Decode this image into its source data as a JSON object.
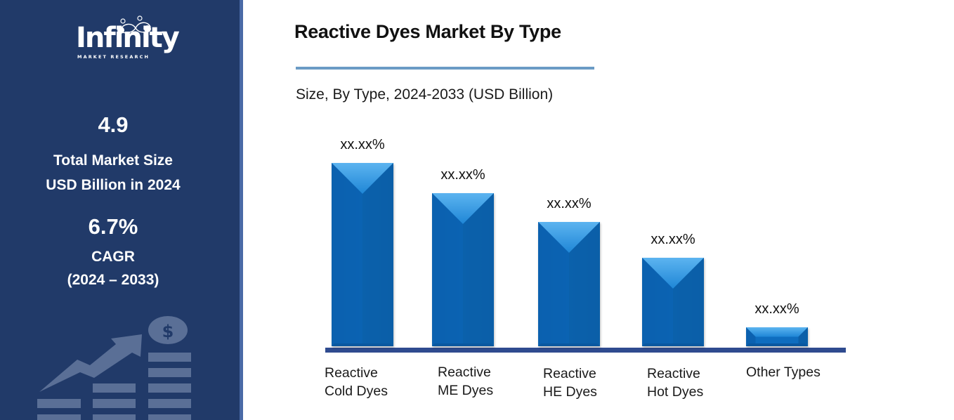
{
  "sidebar": {
    "logo": {
      "name": "Infinity",
      "subtitle": "MARKET RESEARCH"
    },
    "market_size": {
      "value": "4.9",
      "label_line1": "Total Market Size",
      "label_line2": "USD Billion in 2024"
    },
    "cagr": {
      "value": "6.7%",
      "label": "CAGR",
      "period": "(2024 – 2033)"
    },
    "decoration": "growth-chart-dollar-icon",
    "colors": {
      "background": "#213a69",
      "edge": "#4a6aa6",
      "decoration": "#5a6f96"
    }
  },
  "header": {
    "title": "Reactive Dyes Market By Type",
    "subtitle": "Size, By Type, 2024-2033 (USD Billion)",
    "rule_color": "#6b9bc5"
  },
  "chart_data": {
    "type": "bar",
    "title": "Reactive Dyes Market By Type",
    "subtitle": "Size, By Type, 2024-2033 (USD Billion)",
    "xlabel": "",
    "ylabel": "",
    "categories": [
      "Reactive Cold Dyes",
      "Reactive ME Dyes",
      "Reactive HE Dyes",
      "Reactive Hot Dyes",
      "Other Types"
    ],
    "category_lines": [
      [
        "Reactive",
        "Cold Dyes"
      ],
      [
        "Reactive",
        "ME Dyes"
      ],
      [
        "Reactive",
        "HE Dyes"
      ],
      [
        "Reactive",
        "Hot Dyes"
      ],
      [
        "Other Types",
        ""
      ]
    ],
    "values": [
      261,
      218,
      177,
      126,
      27
    ],
    "value_note": "relative bar heights in pixels (actual values masked)",
    "data_labels": [
      "xx.xx%",
      "xx.xx%",
      "xx.xx%",
      "xx.xx%",
      "xx.xx%"
    ],
    "bar_color": "#0d6bbd",
    "axis_color": "#2f4b8f",
    "grid": false,
    "legend": null
  }
}
